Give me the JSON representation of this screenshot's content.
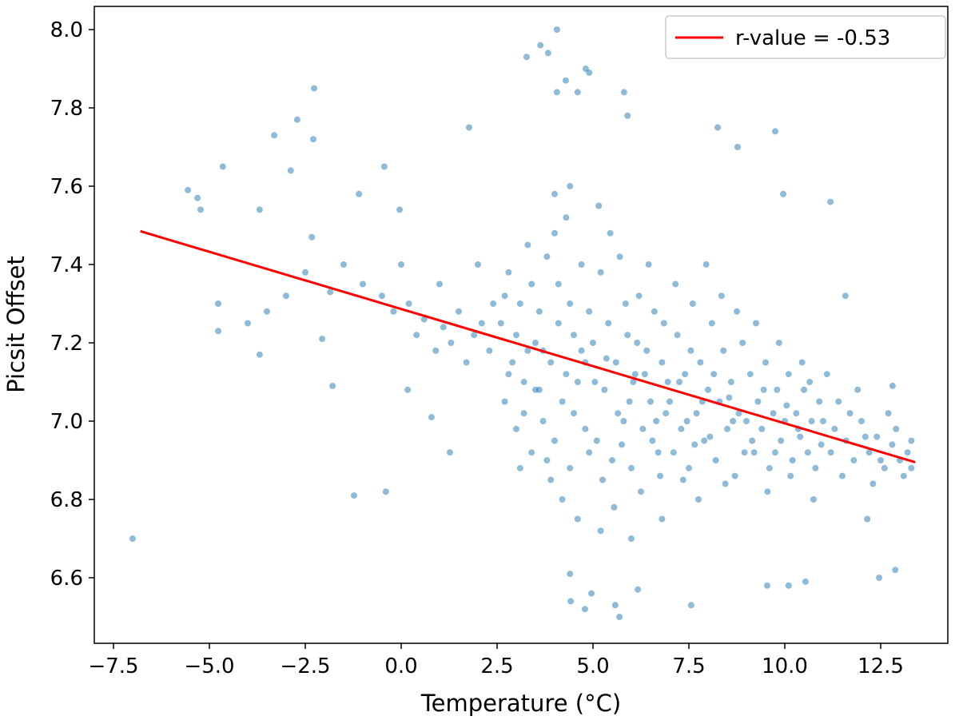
{
  "chart_data": {
    "type": "scatter",
    "title": "",
    "xlabel": "Temperature (°C)",
    "ylabel": "Picsit Offset",
    "xlim": [
      -7.8,
      14.0
    ],
    "ylim": [
      6.48,
      8.03
    ],
    "xticks": [
      -7.5,
      -5.0,
      -2.5,
      0.0,
      2.5,
      5.0,
      7.5,
      10.0,
      12.5
    ],
    "xtick_labels": [
      "−7.5",
      "−5.0",
      "−2.5",
      "0.0",
      "2.5",
      "5.0",
      "7.5",
      "10.0",
      "12.5"
    ],
    "yticks": [
      6.6,
      6.8,
      7.0,
      7.2,
      7.4,
      7.6,
      7.8,
      8.0
    ],
    "ytick_labels": [
      "6.6",
      "6.8",
      "7.0",
      "7.2",
      "7.4",
      "7.6",
      "7.8",
      "8.0"
    ],
    "grid": false,
    "legend": {
      "placement": "top-right",
      "entries": [
        "r-value = -0.53"
      ]
    },
    "scatter_color": "#1f77b4",
    "scatter_alpha": 0.5,
    "fit_line": {
      "name": "r-value = -0.53",
      "color": "#ff0000",
      "x": [
        -6.8,
        13.4
      ],
      "y": [
        7.485,
        6.895
      ],
      "r_value": -0.53
    },
    "points": [
      [
        -7.0,
        6.7
      ],
      [
        -5.56,
        7.59
      ],
      [
        -5.31,
        7.57
      ],
      [
        -5.23,
        7.54
      ],
      [
        -4.65,
        7.65
      ],
      [
        -4.77,
        7.3
      ],
      [
        -4.77,
        7.23
      ],
      [
        -3.69,
        7.54
      ],
      [
        -3.69,
        7.17
      ],
      [
        -3.31,
        7.73
      ],
      [
        -2.88,
        7.64
      ],
      [
        -2.71,
        7.77
      ],
      [
        -2.27,
        7.85
      ],
      [
        -2.29,
        7.72
      ],
      [
        -2.33,
        7.47
      ],
      [
        -1.85,
        7.33
      ],
      [
        -2.06,
        7.21
      ],
      [
        -1.79,
        7.09
      ],
      [
        -1.23,
        6.81
      ],
      [
        -0.4,
        6.82
      ],
      [
        -0.44,
        7.65
      ],
      [
        -1.1,
        7.58
      ],
      [
        -0.04,
        7.54
      ],
      [
        0.17,
        7.08
      ],
      [
        0.79,
        7.01
      ],
      [
        1.77,
        7.75
      ],
      [
        1.27,
        6.92
      ],
      [
        3.27,
        7.93
      ],
      [
        3.63,
        7.96
      ],
      [
        4.06,
        8.0
      ],
      [
        3.83,
        7.94
      ],
      [
        4.29,
        7.87
      ],
      [
        4.6,
        7.84
      ],
      [
        4.06,
        7.84
      ],
      [
        4.81,
        7.9
      ],
      [
        4.9,
        7.89
      ],
      [
        5.81,
        7.84
      ],
      [
        5.9,
        7.78
      ],
      [
        5.58,
        6.53
      ],
      [
        4.79,
        6.52
      ],
      [
        4.42,
        6.54
      ],
      [
        4.96,
        6.56
      ],
      [
        4.4,
        6.61
      ],
      [
        5.69,
        6.5
      ],
      [
        6.17,
        6.57
      ],
      [
        7.56,
        6.53
      ],
      [
        8.25,
        7.75
      ],
      [
        8.77,
        7.7
      ],
      [
        9.75,
        7.74
      ],
      [
        9.96,
        7.58
      ],
      [
        11.19,
        7.56
      ],
      [
        11.58,
        7.32
      ],
      [
        12.15,
        6.75
      ],
      [
        12.46,
        6.6
      ],
      [
        12.88,
        6.62
      ],
      [
        12.81,
        7.09
      ],
      [
        9.54,
        6.58
      ],
      [
        10.1,
        6.58
      ],
      [
        10.54,
        6.59
      ],
      [
        -0.5,
        7.32
      ],
      [
        -0.2,
        7.28
      ],
      [
        0.2,
        7.3
      ],
      [
        0.4,
        7.22
      ],
      [
        0.6,
        7.26
      ],
      [
        0.9,
        7.18
      ],
      [
        1.1,
        7.24
      ],
      [
        1.3,
        7.2
      ],
      [
        1.5,
        7.28
      ],
      [
        1.7,
        7.15
      ],
      [
        1.9,
        7.22
      ],
      [
        2.1,
        7.25
      ],
      [
        2.3,
        7.18
      ],
      [
        2.4,
        7.3
      ],
      [
        -1.5,
        7.4
      ],
      [
        -1.0,
        7.35
      ],
      [
        0.0,
        7.4
      ],
      [
        1.0,
        7.35
      ],
      [
        2.0,
        7.4
      ],
      [
        -3.0,
        7.32
      ],
      [
        -3.5,
        7.28
      ],
      [
        -2.5,
        7.38
      ],
      [
        -4.0,
        7.25
      ],
      [
        2.6,
        7.25
      ],
      [
        2.7,
        7.05
      ],
      [
        2.8,
        7.38
      ],
      [
        2.9,
        7.15
      ],
      [
        3.0,
        6.98
      ],
      [
        3.1,
        7.3
      ],
      [
        3.2,
        7.1
      ],
      [
        3.3,
        7.45
      ],
      [
        3.4,
        6.92
      ],
      [
        3.5,
        7.2
      ],
      [
        2.8,
        7.12
      ],
      [
        3.0,
        7.22
      ],
      [
        3.2,
        7.02
      ],
      [
        3.4,
        7.35
      ],
      [
        3.1,
        6.88
      ],
      [
        3.3,
        7.18
      ],
      [
        2.7,
        7.32
      ],
      [
        3.5,
        7.08
      ],
      [
        3.6,
        7.28
      ],
      [
        3.7,
        7.0
      ],
      [
        3.8,
        7.42
      ],
      [
        3.9,
        7.15
      ],
      [
        4.0,
        6.95
      ],
      [
        4.1,
        7.35
      ],
      [
        4.2,
        7.05
      ],
      [
        4.3,
        7.52
      ],
      [
        4.4,
        6.88
      ],
      [
        4.5,
        7.22
      ],
      [
        4.6,
        7.1
      ],
      [
        4.7,
        7.4
      ],
      [
        4.8,
        6.98
      ],
      [
        4.9,
        7.28
      ],
      [
        3.7,
        7.18
      ],
      [
        3.9,
        6.85
      ],
      [
        4.1,
        7.25
      ],
      [
        4.3,
        7.12
      ],
      [
        4.5,
        7.02
      ],
      [
        4.7,
        7.18
      ],
      [
        4.9,
        6.92
      ],
      [
        3.6,
        7.08
      ],
      [
        4.0,
        7.48
      ],
      [
        4.4,
        7.3
      ],
      [
        4.8,
        7.15
      ],
      [
        4.2,
        6.8
      ],
      [
        4.6,
        6.75
      ],
      [
        3.8,
        6.9
      ],
      [
        4.4,
        7.6
      ],
      [
        4.0,
        7.58
      ],
      [
        5.0,
        7.2
      ],
      [
        5.1,
        6.95
      ],
      [
        5.2,
        7.38
      ],
      [
        5.3,
        7.08
      ],
      [
        5.4,
        7.25
      ],
      [
        5.5,
        6.9
      ],
      [
        5.6,
        7.15
      ],
      [
        5.7,
        7.42
      ],
      [
        5.8,
        7.0
      ],
      [
        5.9,
        7.22
      ],
      [
        6.0,
        6.88
      ],
      [
        6.1,
        7.12
      ],
      [
        6.2,
        7.32
      ],
      [
        6.3,
        6.98
      ],
      [
        6.4,
        7.18
      ],
      [
        6.5,
        7.05
      ],
      [
        6.6,
        7.28
      ],
      [
        6.7,
        6.92
      ],
      [
        6.8,
        7.15
      ],
      [
        6.9,
        7.02
      ],
      [
        5.05,
        7.1
      ],
      [
        5.25,
        6.85
      ],
      [
        5.45,
        7.48
      ],
      [
        5.65,
        7.02
      ],
      [
        5.85,
        7.3
      ],
      [
        6.05,
        7.1
      ],
      [
        6.25,
        6.82
      ],
      [
        6.45,
        7.4
      ],
      [
        6.65,
        7.0
      ],
      [
        6.85,
        7.25
      ],
      [
        5.15,
        7.55
      ],
      [
        5.55,
        6.78
      ],
      [
        5.95,
        7.05
      ],
      [
        6.35,
        7.12
      ],
      [
        6.75,
        6.86
      ],
      [
        5.35,
        7.16
      ],
      [
        5.75,
        6.94
      ],
      [
        6.15,
        7.2
      ],
      [
        6.55,
        6.95
      ],
      [
        6.95,
        7.1
      ],
      [
        5.2,
        6.72
      ],
      [
        6.0,
        6.7
      ],
      [
        6.8,
        6.75
      ],
      [
        7.0,
        7.05
      ],
      [
        7.1,
        6.92
      ],
      [
        7.2,
        7.22
      ],
      [
        7.3,
        6.98
      ],
      [
        7.4,
        7.12
      ],
      [
        7.5,
        6.88
      ],
      [
        7.6,
        7.3
      ],
      [
        7.7,
        7.02
      ],
      [
        7.8,
        7.15
      ],
      [
        7.9,
        6.95
      ],
      [
        8.0,
        7.08
      ],
      [
        8.1,
        7.25
      ],
      [
        8.2,
        6.9
      ],
      [
        8.3,
        7.05
      ],
      [
        8.4,
        7.18
      ],
      [
        8.5,
        6.98
      ],
      [
        8.6,
        7.1
      ],
      [
        8.7,
        6.86
      ],
      [
        8.8,
        7.02
      ],
      [
        8.9,
        7.2
      ],
      [
        7.15,
        7.35
      ],
      [
        7.45,
        7.0
      ],
      [
        7.75,
        6.8
      ],
      [
        8.05,
        6.96
      ],
      [
        8.35,
        7.32
      ],
      [
        8.65,
        7.0
      ],
      [
        8.95,
        6.92
      ],
      [
        7.25,
        7.1
      ],
      [
        7.55,
        7.18
      ],
      [
        7.85,
        7.05
      ],
      [
        8.15,
        7.12
      ],
      [
        8.45,
        6.84
      ],
      [
        8.75,
        7.28
      ],
      [
        7.35,
        6.85
      ],
      [
        7.95,
        7.4
      ],
      [
        8.55,
        7.06
      ],
      [
        7.65,
        6.94
      ],
      [
        9.0,
        7.0
      ],
      [
        9.1,
        7.12
      ],
      [
        9.2,
        6.92
      ],
      [
        9.3,
        7.05
      ],
      [
        9.4,
        6.98
      ],
      [
        9.5,
        7.15
      ],
      [
        9.6,
        6.88
      ],
      [
        9.7,
        7.02
      ],
      [
        9.8,
        7.08
      ],
      [
        9.9,
        6.95
      ],
      [
        10.0,
        7.0
      ],
      [
        10.1,
        7.12
      ],
      [
        10.2,
        6.9
      ],
      [
        10.3,
        7.02
      ],
      [
        10.4,
        6.96
      ],
      [
        10.5,
        7.08
      ],
      [
        10.6,
        6.92
      ],
      [
        10.7,
        7.0
      ],
      [
        10.8,
        6.88
      ],
      [
        10.9,
        7.05
      ],
      [
        9.25,
        7.25
      ],
      [
        9.55,
        6.82
      ],
      [
        9.85,
        7.2
      ],
      [
        10.15,
        6.86
      ],
      [
        10.45,
        7.15
      ],
      [
        10.75,
        6.8
      ],
      [
        9.15,
        6.95
      ],
      [
        9.45,
        7.08
      ],
      [
        9.75,
        6.92
      ],
      [
        10.05,
        7.04
      ],
      [
        10.35,
        6.98
      ],
      [
        10.65,
        7.1
      ],
      [
        10.95,
        6.94
      ],
      [
        11.0,
        7.0
      ],
      [
        11.2,
        6.92
      ],
      [
        11.4,
        7.05
      ],
      [
        11.6,
        6.95
      ],
      [
        11.8,
        6.9
      ],
      [
        12.0,
        7.0
      ],
      [
        12.2,
        6.92
      ],
      [
        12.4,
        6.96
      ],
      [
        12.6,
        6.88
      ],
      [
        12.8,
        6.94
      ],
      [
        13.0,
        6.9
      ],
      [
        13.2,
        6.92
      ],
      [
        13.3,
        6.95
      ],
      [
        11.1,
        7.12
      ],
      [
        11.5,
        6.86
      ],
      [
        11.9,
        7.08
      ],
      [
        12.3,
        6.84
      ],
      [
        12.7,
        7.02
      ],
      [
        13.1,
        6.86
      ],
      [
        11.3,
        6.98
      ],
      [
        11.7,
        7.02
      ],
      [
        12.1,
        6.96
      ],
      [
        12.5,
        6.9
      ],
      [
        12.9,
        6.98
      ],
      [
        13.3,
        6.88
      ]
    ]
  }
}
